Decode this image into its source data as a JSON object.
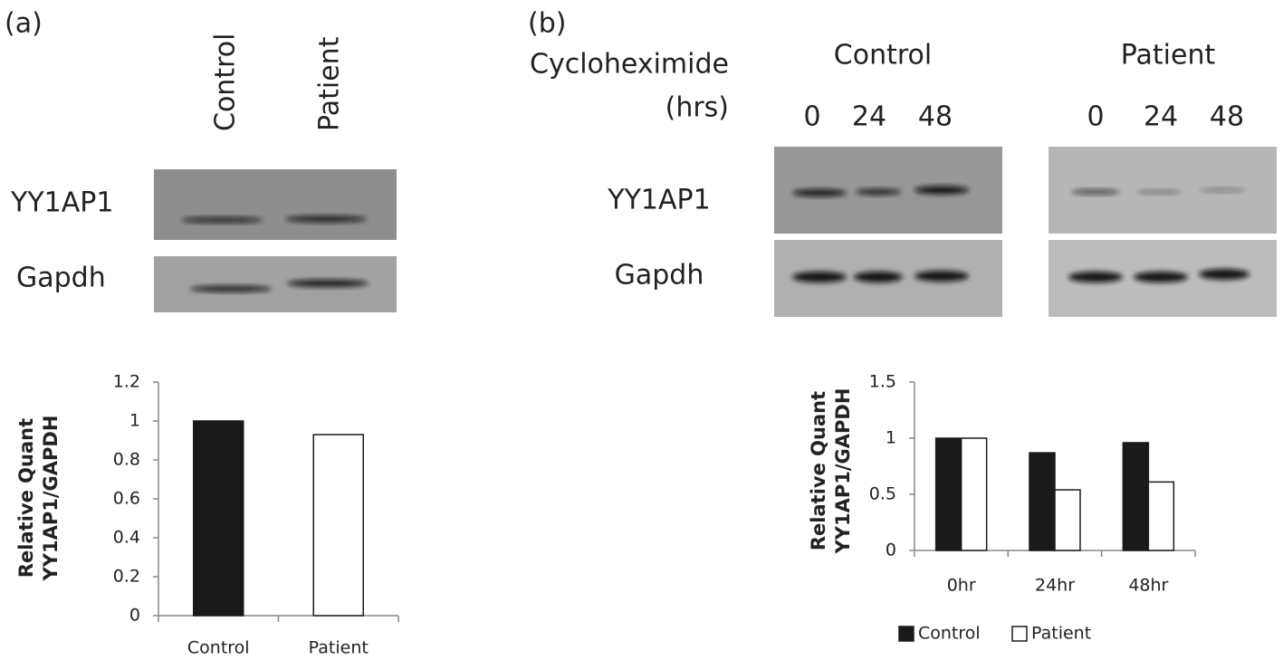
{
  "panel_a": {
    "label": "(a)",
    "lanes": [
      "Control",
      "Patient"
    ],
    "rows": [
      "YY1AP1",
      "Gapdh"
    ]
  },
  "panel_b": {
    "label": "(b)",
    "treatment": "Cycloheximide",
    "unit": "(hrs)",
    "groups": [
      {
        "name": "Control",
        "times": [
          "0",
          "24",
          "48"
        ]
      },
      {
        "name": "Patient",
        "times": [
          "0",
          "24",
          "48"
        ]
      }
    ],
    "rows": [
      "YY1AP1",
      "Gapdh"
    ]
  },
  "chart_data": [
    {
      "type": "bar",
      "ylabel": [
        "Relative Quant",
        "YY1AP1/GAPDH"
      ],
      "categories": [
        "Control",
        "Patient"
      ],
      "values": [
        1,
        0.93
      ],
      "colors": [
        "#1a1a1a",
        "#ffffff"
      ],
      "ylim": [
        0,
        1.2
      ],
      "yticks": [
        0,
        0.2,
        0.4,
        0.6,
        0.8,
        1,
        1.2
      ]
    },
    {
      "type": "grouped_bar",
      "ylabel": [
        "Relative Quant",
        "YY1AP1/GAPDH"
      ],
      "categories": [
        "0hr",
        "24hr",
        "48hr"
      ],
      "series": [
        {
          "name": "Control",
          "color": "#1a1a1a",
          "values": [
            1,
            0.87,
            0.96
          ]
        },
        {
          "name": "Patient",
          "color": "#ffffff",
          "values": [
            1,
            0.54,
            0.61
          ]
        }
      ],
      "ylim": [
        0,
        1.5
      ],
      "yticks": [
        0,
        0.5,
        1,
        1.5
      ],
      "legend": "bottom"
    }
  ]
}
